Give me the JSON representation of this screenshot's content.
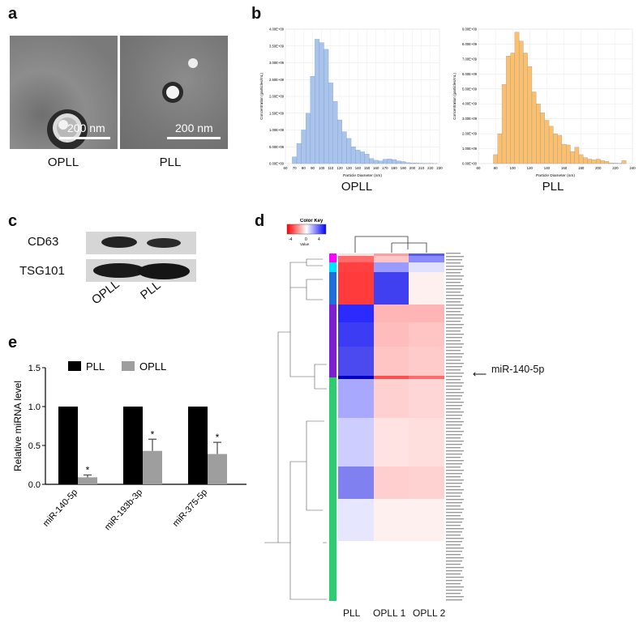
{
  "panel_labels": {
    "a": "a",
    "b": "b",
    "c": "c",
    "d": "d",
    "e": "e"
  },
  "panel_a": {
    "scale_text": "200 nm",
    "left_label": "OPLL",
    "right_label": "PLL"
  },
  "panel_c": {
    "row_labels": [
      "CD63",
      "TSG101"
    ],
    "lane_labels": [
      "OPLL",
      "PLL"
    ]
  },
  "panel_d": {
    "color_key_title": "Color Key",
    "color_key_ticks": [
      "-4",
      "0",
      "4"
    ],
    "color_key_value": "Value",
    "column_labels": [
      "PLL",
      "OPLL 1",
      "OPLL 2"
    ],
    "annotation": "miR-140-5p",
    "colors": {
      "low": "#ff0000",
      "mid": "#ffffff",
      "high": "#0000ff"
    }
  },
  "chart_data": [
    {
      "type": "bar",
      "title": "",
      "caption": "OPLL",
      "xlabel": "Particle Diameter (nm)",
      "ylabel": "Concentration (particles/mL)",
      "x": [
        70,
        75,
        80,
        85,
        90,
        95,
        100,
        105,
        110,
        115,
        120,
        125,
        130,
        135,
        140,
        145,
        150,
        155,
        160,
        165,
        170,
        175,
        180,
        185,
        190,
        195,
        200,
        205,
        210,
        215,
        220,
        225
      ],
      "values": [
        200000000.0,
        600000000.0,
        1000000000.0,
        1500000000.0,
        2600000000.0,
        3700000000.0,
        3600000000.0,
        3400000000.0,
        2400000000.0,
        1850000000.0,
        1300000000.0,
        950000000.0,
        750000000.0,
        500000000.0,
        400000000.0,
        350000000.0,
        280000000.0,
        150000000.0,
        100000000.0,
        80000000.0,
        130000000.0,
        140000000.0,
        120000000.0,
        80000000.0,
        60000000.0,
        30000000.0,
        20000000.0,
        15000000.0,
        10000000.0,
        8000000.0,
        5000000.0,
        3000000.0
      ],
      "bar_width": 5,
      "xlim": [
        60,
        230
      ],
      "ylim": [
        0,
        4000000000.0
      ],
      "xticks": [
        "60",
        "70",
        "80",
        "90",
        "100",
        "110",
        "120",
        "130",
        "140",
        "150",
        "160",
        "170",
        "180",
        "190",
        "200",
        "210",
        "220",
        "230"
      ],
      "yticks": [
        "0.00E+00",
        "5.00E+08",
        "1.00E+09",
        "1.50E+09",
        "2.00E+09",
        "2.50E+09",
        "3.00E+09",
        "3.50E+09",
        "4.00E+09"
      ],
      "color": "#a9c4ec",
      "grid": true
    },
    {
      "type": "bar",
      "title": "",
      "caption": "PLL",
      "xlabel": "Particle Diameter (nm)",
      "ylabel": "Concentration (particles/mL)",
      "x": [
        80,
        85,
        90,
        95,
        100,
        105,
        110,
        115,
        120,
        125,
        130,
        135,
        140,
        145,
        150,
        155,
        160,
        165,
        170,
        175,
        180,
        185,
        190,
        195,
        200,
        205,
        210,
        215,
        220,
        225,
        230
      ],
      "values": [
        600000000.0,
        2000000000.0,
        5300000000.0,
        7200000000.0,
        7400000000.0,
        8800000000.0,
        8200000000.0,
        7400000000.0,
        6500000000.0,
        4800000000.0,
        4000000000.0,
        3400000000.0,
        2900000000.0,
        2500000000.0,
        2000000000.0,
        1900000000.0,
        1300000000.0,
        1250000000.0,
        800000000.0,
        1100000000.0,
        600000000.0,
        400000000.0,
        300000000.0,
        250000000.0,
        300000000.0,
        200000000.0,
        150000000.0,
        50000000.0,
        30000000.0,
        20000000.0,
        200000000.0
      ],
      "bar_width": 5,
      "xlim": [
        60,
        240
      ],
      "ylim": [
        0,
        9000000000.0
      ],
      "xticks": [
        "60",
        "80",
        "100",
        "120",
        "140",
        "160",
        "180",
        "200",
        "220",
        "240"
      ],
      "yticks": [
        "0.00E+00",
        "1.00E+09",
        "2.00E+09",
        "3.00E+09",
        "4.00E+09",
        "5.00E+09",
        "6.00E+09",
        "7.00E+09",
        "8.00E+09",
        "9.00E+09"
      ],
      "color": "#fcbf6c",
      "grid": true
    },
    {
      "type": "bar",
      "title": "",
      "xlabel": "",
      "ylabel": "Relative miRNA level",
      "categories": [
        "miR-140-5p",
        "miR-193b-3p",
        "miR-375-5p"
      ],
      "series": [
        {
          "name": "PLL",
          "values": [
            1.0,
            1.0,
            1.0
          ],
          "color": "#000000"
        },
        {
          "name": "OPLL",
          "values": [
            0.09,
            0.43,
            0.39
          ],
          "errors": [
            0.03,
            0.15,
            0.15
          ],
          "color": "#9e9e9e"
        }
      ],
      "significance": [
        "*",
        "*",
        "*"
      ],
      "ylim": [
        0,
        1.5
      ],
      "yticks": [
        "0.0",
        "0.5",
        "1.0",
        "1.5"
      ],
      "legend": "top"
    }
  ]
}
